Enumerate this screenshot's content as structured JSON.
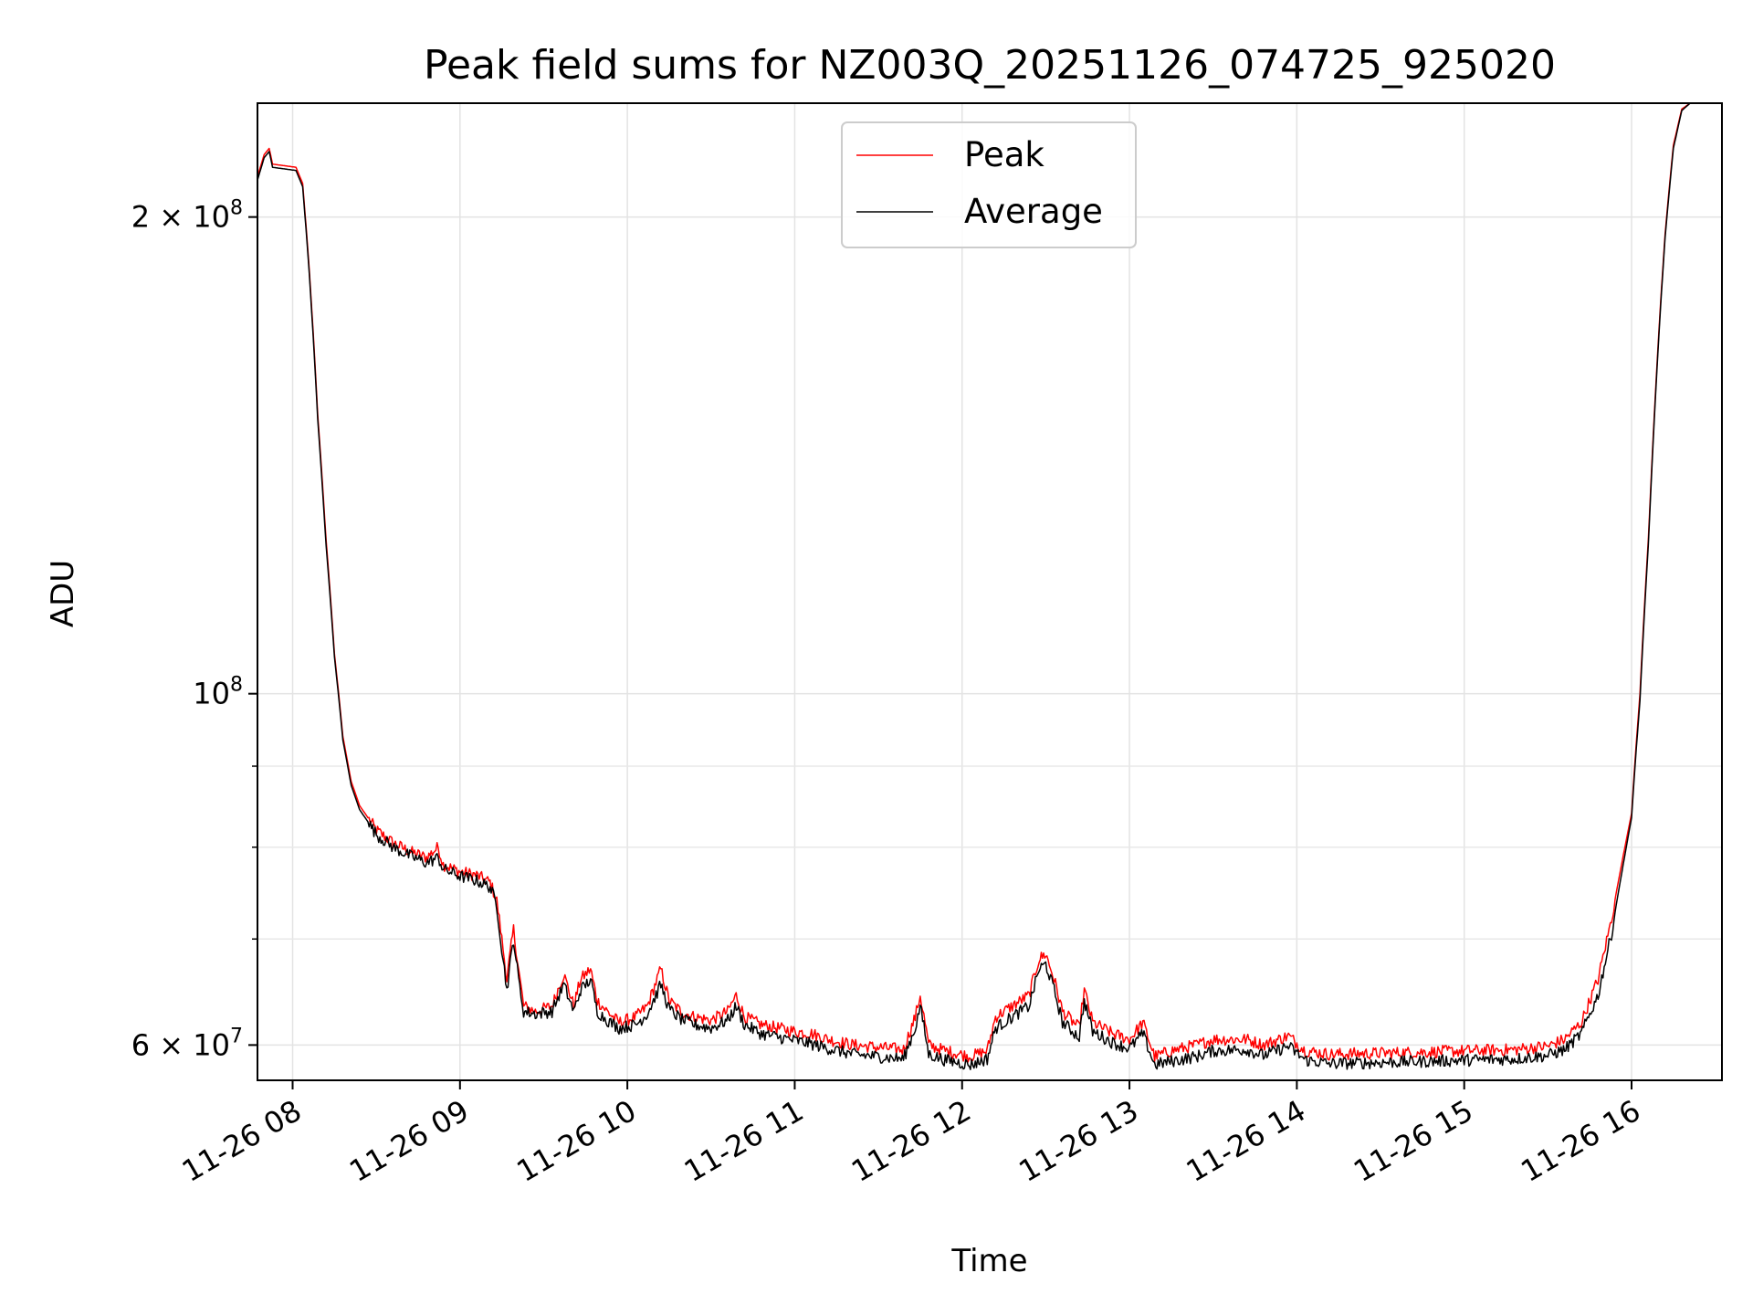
{
  "chart_data": {
    "type": "line",
    "title": "Peak field sums for NZ003Q_20251126_074725_925020",
    "xlabel": "Time",
    "ylabel": "ADU",
    "yscale": "log",
    "xlim_hours": [
      7.79,
      16.54
    ],
    "ylim": [
      57000000,
      236000000
    ],
    "grid": true,
    "legend_position": "top-center",
    "x_ticks": [
      {
        "hour": 8,
        "label": "11-26 08"
      },
      {
        "hour": 9,
        "label": "11-26 09"
      },
      {
        "hour": 10,
        "label": "11-26 10"
      },
      {
        "hour": 11,
        "label": "11-26 11"
      },
      {
        "hour": 12,
        "label": "11-26 12"
      },
      {
        "hour": 13,
        "label": "11-26 13"
      },
      {
        "hour": 14,
        "label": "11-26 14"
      },
      {
        "hour": 15,
        "label": "11-26 15"
      },
      {
        "hour": 16,
        "label": "11-26 16"
      }
    ],
    "y_ticks": [
      {
        "value": 200000000,
        "base": "2 × 10",
        "exp": "8"
      },
      {
        "value": 100000000,
        "base": "10",
        "exp": "8"
      },
      {
        "value": 60000000,
        "base": "6 × 10",
        "exp": "7"
      }
    ],
    "y_minor_ticks": [
      70000000,
      80000000,
      90000000
    ],
    "series": [
      {
        "name": "Peak",
        "color": "#ff0000",
        "points": [
          [
            7.79,
            212000000
          ],
          [
            7.83,
            219000000
          ],
          [
            7.86,
            221000000
          ],
          [
            7.88,
            216000000
          ],
          [
            8.02,
            215000000
          ],
          [
            8.06,
            210000000
          ],
          [
            8.1,
            185000000
          ],
          [
            8.15,
            150000000
          ],
          [
            8.2,
            125000000
          ],
          [
            8.25,
            106000000
          ],
          [
            8.3,
            94000000
          ],
          [
            8.35,
            88000000
          ],
          [
            8.4,
            85000000
          ],
          [
            8.5,
            82000000
          ],
          [
            8.6,
            80500000
          ],
          [
            8.7,
            79500000
          ],
          [
            8.8,
            78800000
          ],
          [
            8.87,
            80000000
          ],
          [
            8.9,
            78000000
          ],
          [
            9.0,
            77200000
          ],
          [
            9.1,
            76800000
          ],
          [
            9.18,
            76000000
          ],
          [
            9.22,
            74000000
          ],
          [
            9.25,
            70000000
          ],
          [
            9.28,
            66000000
          ],
          [
            9.32,
            71000000
          ],
          [
            9.35,
            67000000
          ],
          [
            9.38,
            63500000
          ],
          [
            9.45,
            63000000
          ],
          [
            9.55,
            63500000
          ],
          [
            9.62,
            66500000
          ],
          [
            9.68,
            63500000
          ],
          [
            9.72,
            66000000
          ],
          [
            9.78,
            67000000
          ],
          [
            9.82,
            64000000
          ],
          [
            9.88,
            63000000
          ],
          [
            9.95,
            62000000
          ],
          [
            10.05,
            62500000
          ],
          [
            10.12,
            63500000
          ],
          [
            10.2,
            67000000
          ],
          [
            10.25,
            64000000
          ],
          [
            10.32,
            63000000
          ],
          [
            10.4,
            62500000
          ],
          [
            10.5,
            62200000
          ],
          [
            10.6,
            63000000
          ],
          [
            10.65,
            64500000
          ],
          [
            10.7,
            62500000
          ],
          [
            10.8,
            61800000
          ],
          [
            10.9,
            61500000
          ],
          [
            11.0,
            61200000
          ],
          [
            11.1,
            61000000
          ],
          [
            11.2,
            60500000
          ],
          [
            11.35,
            60000000
          ],
          [
            11.5,
            59800000
          ],
          [
            11.65,
            59600000
          ],
          [
            11.72,
            62500000
          ],
          [
            11.75,
            64500000
          ],
          [
            11.8,
            60000000
          ],
          [
            11.9,
            59500000
          ],
          [
            12.05,
            59000000
          ],
          [
            12.15,
            59500000
          ],
          [
            12.2,
            62500000
          ],
          [
            12.3,
            63500000
          ],
          [
            12.4,
            64500000
          ],
          [
            12.46,
            68000000
          ],
          [
            12.5,
            68500000
          ],
          [
            12.55,
            66000000
          ],
          [
            12.6,
            63000000
          ],
          [
            12.7,
            61500000
          ],
          [
            12.73,
            65000000
          ],
          [
            12.78,
            62000000
          ],
          [
            12.9,
            61000000
          ],
          [
            13.0,
            60500000
          ],
          [
            13.08,
            62000000
          ],
          [
            13.15,
            59000000
          ],
          [
            13.25,
            59500000
          ],
          [
            13.4,
            60000000
          ],
          [
            13.5,
            60500000
          ],
          [
            13.7,
            60500000
          ],
          [
            13.8,
            60000000
          ],
          [
            13.95,
            60800000
          ],
          [
            14.05,
            59500000
          ],
          [
            14.2,
            59200000
          ],
          [
            14.5,
            59300000
          ],
          [
            14.8,
            59400000
          ],
          [
            15.0,
            59500000
          ],
          [
            15.3,
            59600000
          ],
          [
            15.5,
            59900000
          ],
          [
            15.6,
            60500000
          ],
          [
            15.7,
            62000000
          ],
          [
            15.8,
            66000000
          ],
          [
            15.88,
            72000000
          ],
          [
            15.95,
            79000000
          ],
          [
            16.0,
            84000000
          ],
          [
            16.05,
            100000000
          ],
          [
            16.1,
            125000000
          ],
          [
            16.15,
            160000000
          ],
          [
            16.2,
            195000000
          ],
          [
            16.25,
            222000000
          ],
          [
            16.3,
            234000000
          ],
          [
            16.35,
            236000000
          ],
          [
            16.54,
            236000000
          ]
        ]
      },
      {
        "name": "Average",
        "color": "#000000",
        "points": [
          [
            7.79,
            211000000
          ],
          [
            7.83,
            218000000
          ],
          [
            7.86,
            220000000
          ],
          [
            7.88,
            215000000
          ],
          [
            8.02,
            214000000
          ],
          [
            8.06,
            209000000
          ],
          [
            8.1,
            184000000
          ],
          [
            8.15,
            149000000
          ],
          [
            8.2,
            124000000
          ],
          [
            8.25,
            105500000
          ],
          [
            8.3,
            93500000
          ],
          [
            8.35,
            87500000
          ],
          [
            8.4,
            84500000
          ],
          [
            8.5,
            81500000
          ],
          [
            8.6,
            80000000
          ],
          [
            8.7,
            79000000
          ],
          [
            8.8,
            78200000
          ],
          [
            8.87,
            78800000
          ],
          [
            8.9,
            77500000
          ],
          [
            9.0,
            76700000
          ],
          [
            9.1,
            76200000
          ],
          [
            9.18,
            75500000
          ],
          [
            9.22,
            73500000
          ],
          [
            9.25,
            69000000
          ],
          [
            9.28,
            65000000
          ],
          [
            9.32,
            70000000
          ],
          [
            9.35,
            66000000
          ],
          [
            9.38,
            63000000
          ],
          [
            9.45,
            62800000
          ],
          [
            9.55,
            63000000
          ],
          [
            9.62,
            65500000
          ],
          [
            9.68,
            63000000
          ],
          [
            9.72,
            65000000
          ],
          [
            9.78,
            66000000
          ],
          [
            9.82,
            63000000
          ],
          [
            9.88,
            62200000
          ],
          [
            9.95,
            61500000
          ],
          [
            10.05,
            61800000
          ],
          [
            10.12,
            62800000
          ],
          [
            10.2,
            65500000
          ],
          [
            10.25,
            63200000
          ],
          [
            10.32,
            62300000
          ],
          [
            10.4,
            61800000
          ],
          [
            10.5,
            61500000
          ],
          [
            10.6,
            62200000
          ],
          [
            10.65,
            63500000
          ],
          [
            10.7,
            61800000
          ],
          [
            10.8,
            61000000
          ],
          [
            10.9,
            60700000
          ],
          [
            11.0,
            60400000
          ],
          [
            11.1,
            60100000
          ],
          [
            11.2,
            59700000
          ],
          [
            11.35,
            59200000
          ],
          [
            11.5,
            59000000
          ],
          [
            11.65,
            58800000
          ],
          [
            11.72,
            61500000
          ],
          [
            11.75,
            63500000
          ],
          [
            11.8,
            59200000
          ],
          [
            11.9,
            58700000
          ],
          [
            12.05,
            58300000
          ],
          [
            12.15,
            58800000
          ],
          [
            12.2,
            61500000
          ],
          [
            12.3,
            62500000
          ],
          [
            12.4,
            63500000
          ],
          [
            12.46,
            67000000
          ],
          [
            12.5,
            67500000
          ],
          [
            12.55,
            65000000
          ],
          [
            12.6,
            62000000
          ],
          [
            12.7,
            60700000
          ],
          [
            12.73,
            64000000
          ],
          [
            12.78,
            61200000
          ],
          [
            12.9,
            60200000
          ],
          [
            13.0,
            59700000
          ],
          [
            13.08,
            61000000
          ],
          [
            13.15,
            58300000
          ],
          [
            13.25,
            58600000
          ],
          [
            13.4,
            59000000
          ],
          [
            13.5,
            59500000
          ],
          [
            13.7,
            59600000
          ],
          [
            13.8,
            59100000
          ],
          [
            13.95,
            59900000
          ],
          [
            14.05,
            58700000
          ],
          [
            14.2,
            58400000
          ],
          [
            14.5,
            58500000
          ],
          [
            14.8,
            58600000
          ],
          [
            15.0,
            58700000
          ],
          [
            15.3,
            58800000
          ],
          [
            15.5,
            59100000
          ],
          [
            15.6,
            59600000
          ],
          [
            15.7,
            61000000
          ],
          [
            15.8,
            64500000
          ],
          [
            15.88,
            70500000
          ],
          [
            15.95,
            78000000
          ],
          [
            16.0,
            83500000
          ],
          [
            16.05,
            99000000
          ],
          [
            16.1,
            124000000
          ],
          [
            16.15,
            159000000
          ],
          [
            16.2,
            194000000
          ],
          [
            16.25,
            221000000
          ],
          [
            16.3,
            233500000
          ],
          [
            16.35,
            236000000
          ],
          [
            16.54,
            236000000
          ]
        ]
      }
    ]
  }
}
